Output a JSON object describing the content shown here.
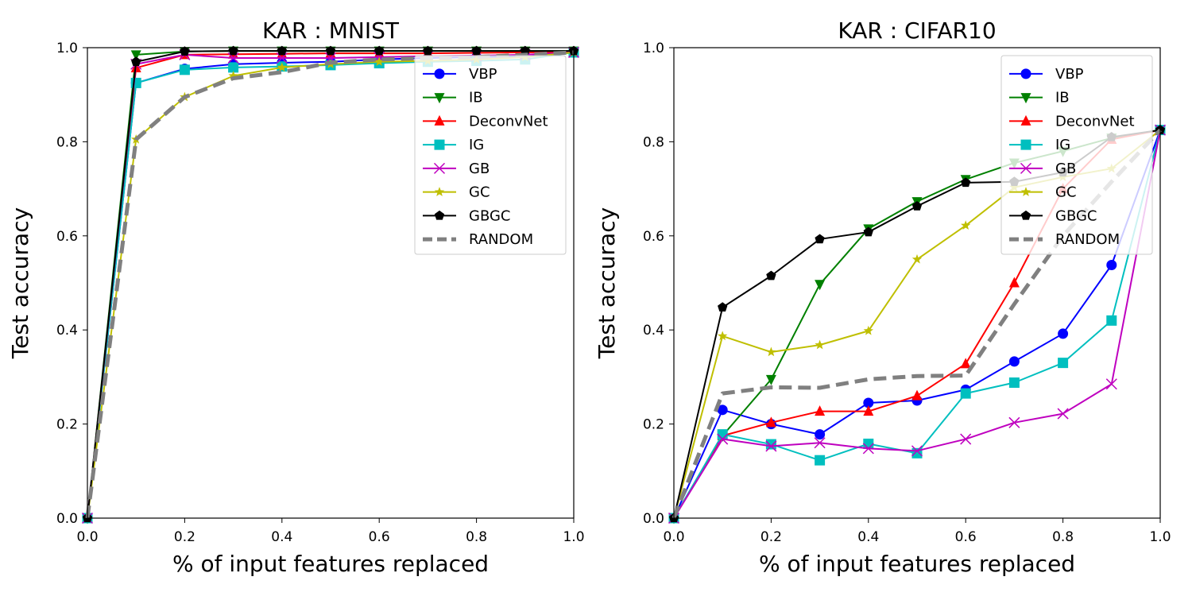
{
  "chart_data": [
    {
      "type": "line",
      "title": "KAR : MNIST",
      "xlabel": "% of input features replaced",
      "ylabel": "Test accuracy",
      "xlim": [
        0,
        1
      ],
      "ylim": [
        0,
        1
      ],
      "xticks": [
        "0.0",
        "0.2",
        "0.4",
        "0.6",
        "0.8",
        "1.0"
      ],
      "yticks": [
        "0.0",
        "0.2",
        "0.4",
        "0.6",
        "0.8",
        "1.0"
      ],
      "grid": false,
      "legend_position": "top-right",
      "x": [
        0.0,
        0.1,
        0.2,
        0.3,
        0.4,
        0.5,
        0.6,
        0.7,
        0.8,
        0.9,
        1.0
      ],
      "series": [
        {
          "name": "VBP",
          "color": "#0000ff",
          "marker": "circle",
          "values": [
            0.0,
            0.925,
            0.955,
            0.965,
            0.968,
            0.97,
            0.975,
            0.978,
            0.98,
            0.982,
            0.99
          ]
        },
        {
          "name": "IB",
          "color": "#008000",
          "marker": "triangle-down",
          "values": [
            0.0,
            0.985,
            0.992,
            0.993,
            0.993,
            0.993,
            0.993,
            0.993,
            0.993,
            0.993,
            0.993
          ]
        },
        {
          "name": "DeconvNet",
          "color": "#ff0000",
          "marker": "triangle-up",
          "values": [
            0.0,
            0.957,
            0.985,
            0.986,
            0.987,
            0.988,
            0.988,
            0.988,
            0.989,
            0.99,
            0.99
          ]
        },
        {
          "name": "IG",
          "color": "#00bfbf",
          "marker": "square",
          "values": [
            0.0,
            0.925,
            0.953,
            0.958,
            0.96,
            0.963,
            0.967,
            0.97,
            0.972,
            0.975,
            0.99
          ]
        },
        {
          "name": "GB",
          "color": "#bf00bf",
          "marker": "x",
          "values": [
            0.0,
            0.965,
            0.985,
            0.978,
            0.978,
            0.978,
            0.98,
            0.982,
            0.983,
            0.985,
            0.99
          ]
        },
        {
          "name": "GC",
          "color": "#bfbf00",
          "marker": "star",
          "values": [
            0.0,
            0.805,
            0.895,
            0.94,
            0.958,
            0.965,
            0.97,
            0.972,
            0.975,
            0.98,
            0.99
          ]
        },
        {
          "name": "GBGC",
          "color": "#000000",
          "marker": "pentagon",
          "values": [
            0.0,
            0.97,
            0.992,
            0.993,
            0.993,
            0.993,
            0.993,
            0.993,
            0.993,
            0.993,
            0.993
          ]
        },
        {
          "name": "RANDOM",
          "color": "#808080",
          "marker": "none",
          "dashed": true,
          "values": [
            0.0,
            0.805,
            0.895,
            0.935,
            0.948,
            0.968,
            0.975,
            0.978,
            0.98,
            0.985,
            0.99
          ]
        }
      ]
    },
    {
      "type": "line",
      "title": "KAR : CIFAR10",
      "xlabel": "% of input features replaced",
      "ylabel": "Test accuracy",
      "xlim": [
        0,
        1
      ],
      "ylim": [
        0,
        1
      ],
      "xticks": [
        "0.0",
        "0.2",
        "0.4",
        "0.6",
        "0.8",
        "1.0"
      ],
      "yticks": [
        "0.0",
        "0.2",
        "0.4",
        "0.6",
        "0.8",
        "1.0"
      ],
      "grid": false,
      "legend_position": "top-right",
      "x": [
        0.0,
        0.1,
        0.2,
        0.3,
        0.4,
        0.5,
        0.6,
        0.7,
        0.8,
        0.9,
        1.0
      ],
      "series": [
        {
          "name": "VBP",
          "color": "#0000ff",
          "marker": "circle",
          "values": [
            0.0,
            0.23,
            0.2,
            0.178,
            0.245,
            0.25,
            0.273,
            0.333,
            0.392,
            0.538,
            0.825
          ]
        },
        {
          "name": "IB",
          "color": "#008000",
          "marker": "triangle-down",
          "values": [
            0.0,
            0.175,
            0.295,
            0.497,
            0.615,
            0.673,
            0.72,
            0.755,
            0.78,
            0.808,
            0.825
          ]
        },
        {
          "name": "DeconvNet",
          "color": "#ff0000",
          "marker": "triangle-up",
          "values": [
            0.0,
            0.175,
            0.203,
            0.227,
            0.227,
            0.26,
            0.328,
            0.5,
            0.7,
            0.805,
            0.825
          ]
        },
        {
          "name": "IG",
          "color": "#00bfbf",
          "marker": "square",
          "values": [
            0.0,
            0.178,
            0.157,
            0.123,
            0.158,
            0.138,
            0.265,
            0.288,
            0.33,
            0.42,
            0.825
          ]
        },
        {
          "name": "GB",
          "color": "#bf00bf",
          "marker": "x",
          "values": [
            0.0,
            0.168,
            0.153,
            0.16,
            0.148,
            0.143,
            0.168,
            0.203,
            0.222,
            0.285,
            0.825
          ]
        },
        {
          "name": "GC",
          "color": "#bfbf00",
          "marker": "star",
          "values": [
            0.0,
            0.387,
            0.353,
            0.368,
            0.398,
            0.55,
            0.622,
            0.703,
            0.725,
            0.743,
            0.825
          ]
        },
        {
          "name": "GBGC",
          "color": "#000000",
          "marker": "pentagon",
          "values": [
            0.0,
            0.448,
            0.515,
            0.593,
            0.608,
            0.663,
            0.713,
            0.715,
            0.735,
            0.81,
            0.825
          ]
        },
        {
          "name": "RANDOM",
          "color": "#808080",
          "marker": "none",
          "dashed": true,
          "values": [
            0.0,
            0.265,
            0.278,
            0.277,
            0.295,
            0.302,
            0.303,
            0.455,
            0.6,
            0.715,
            0.825
          ]
        }
      ]
    }
  ]
}
